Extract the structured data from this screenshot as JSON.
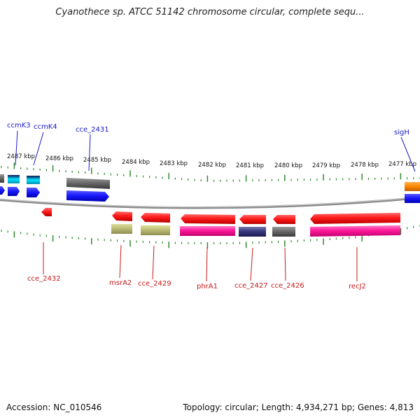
{
  "title": "Cyanothece sp. ATCC 51142 chromosome circular, complete sequ...",
  "footer": {
    "accession": "Accession: NC_010546",
    "summary": "Topology: circular; Length: 4,934,271 bp; Genes: 4,813"
  },
  "colors": {
    "backbone": "#8a8a8a",
    "tick": "#2e8b2e",
    "forward_gene": "#1a1aff",
    "reverse_gene": "#ff1a1a",
    "label_forward": "#1a1ac8",
    "label_reverse": "#c81a1a"
  },
  "scale_labels": [
    "2487 kbp",
    "2486 kbp",
    "2485 kbp",
    "2484 kbp",
    "2483 kbp",
    "2482 kbp",
    "2481 kbp",
    "2480 kbp",
    "2479 kbp",
    "2478 kbp",
    "2477 kbp"
  ],
  "genes_forward": [
    {
      "name": "ccmK3"
    },
    {
      "name": "ccmK4"
    },
    {
      "name": "cce_2431"
    },
    {
      "name": "sigH"
    }
  ],
  "genes_reverse": [
    {
      "name": "cce_2432"
    },
    {
      "name": "msrA2"
    },
    {
      "name": "cce_2429"
    },
    {
      "name": "phrA1"
    },
    {
      "name": "cce_2427"
    },
    {
      "name": "cce_2426"
    },
    {
      "name": "recJ2"
    }
  ]
}
